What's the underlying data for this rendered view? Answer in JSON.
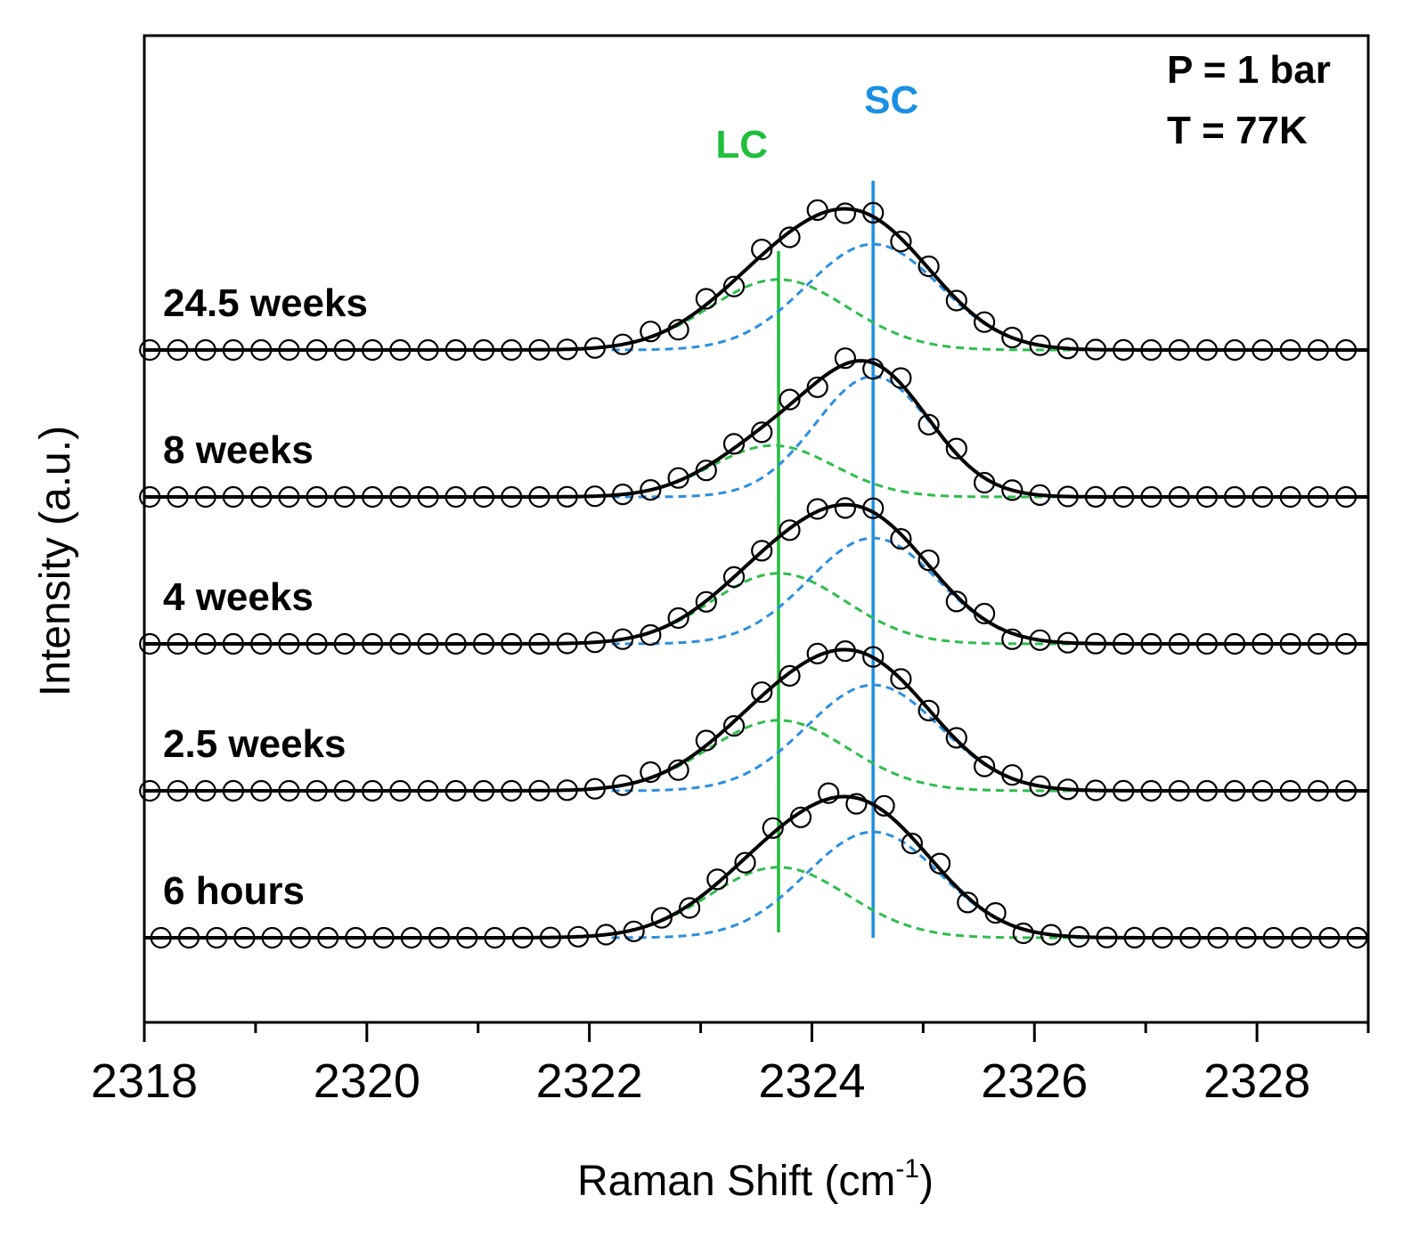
{
  "chart_data": {
    "type": "line",
    "xlabel": "Raman Shift (cm",
    "xlabel_sup": "-1",
    "xlabel_suffix": ")",
    "ylabel": "Intensity (a.u.)",
    "xlim": [
      2318,
      2329
    ],
    "x_ticks": [
      2318,
      2320,
      2322,
      2324,
      2326,
      2328
    ],
    "annotations": {
      "pressure": "P = 1 bar",
      "temperature": "T = 77K"
    },
    "reference_lines": [
      {
        "label": "LC",
        "x": 2323.7,
        "color": "#1fbf3a"
      },
      {
        "label": "SC",
        "x": 2324.55,
        "color": "#1a8fe3"
      }
    ],
    "series_colors": {
      "fit": "#000000",
      "lc_component": "#2ebd4e",
      "sc_component": "#2b8fe0",
      "markers": "#000000"
    },
    "series": [
      {
        "name": "6 hours",
        "offset": 0,
        "marker_start": 2318.15,
        "lc": {
          "amp": 0.48,
          "center": 2323.7,
          "sigma": 0.62
        },
        "sc": {
          "amp": 0.72,
          "center": 2324.55,
          "sigma": 0.6
        }
      },
      {
        "name": "2.5 weeks",
        "offset": 1.0,
        "marker_start": 2318.05,
        "lc": {
          "amp": 0.48,
          "center": 2323.7,
          "sigma": 0.62
        },
        "sc": {
          "amp": 0.72,
          "center": 2324.55,
          "sigma": 0.6
        }
      },
      {
        "name": "4 weeks",
        "offset": 2.0,
        "marker_start": 2318.05,
        "lc": {
          "amp": 0.48,
          "center": 2323.7,
          "sigma": 0.6
        },
        "sc": {
          "amp": 0.72,
          "center": 2324.55,
          "sigma": 0.58
        }
      },
      {
        "name": "8 weeks",
        "offset": 3.0,
        "marker_start": 2318.05,
        "lc": {
          "amp": 0.35,
          "center": 2323.65,
          "sigma": 0.55
        },
        "sc": {
          "amp": 0.82,
          "center": 2324.55,
          "sigma": 0.52
        }
      },
      {
        "name": "24.5 weeks",
        "offset": 4.0,
        "marker_start": 2318.05,
        "lc": {
          "amp": 0.48,
          "center": 2323.7,
          "sigma": 0.62
        },
        "sc": {
          "amp": 0.72,
          "center": 2324.55,
          "sigma": 0.6
        }
      }
    ]
  }
}
